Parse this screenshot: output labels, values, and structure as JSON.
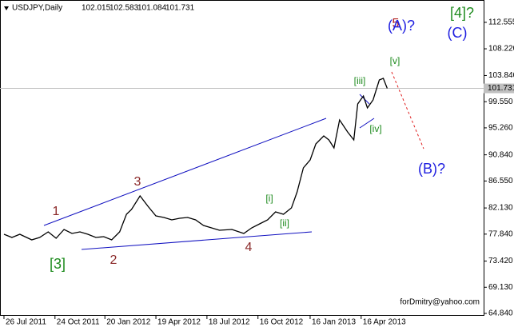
{
  "chart_data": {
    "type": "line",
    "symbol": "USDJPY,Daily",
    "ohlc": [
      102.015,
      102.583,
      101.084,
      101.731
    ],
    "last_price": 101.731,
    "watermark": "forDmitry@yahoo.com",
    "color": "#000000",
    "x": [
      "2011-07-26",
      "2011-08-09",
      "2011-08-23",
      "2011-09-13",
      "2011-09-27",
      "2011-10-12",
      "2011-10-26",
      "2011-11-09",
      "2011-11-23",
      "2011-12-07",
      "2011-12-21",
      "2012-01-04",
      "2012-01-18",
      "2012-02-01",
      "2012-02-15",
      "2012-02-27",
      "2012-03-07",
      "2012-03-22",
      "2012-04-05",
      "2012-04-19",
      "2012-05-03",
      "2012-05-17",
      "2012-05-31",
      "2012-06-14",
      "2012-06-28",
      "2012-07-12",
      "2012-07-26",
      "2012-08-09",
      "2012-08-31",
      "2012-09-21",
      "2012-10-05",
      "2012-10-19",
      "2012-11-02",
      "2012-11-16",
      "2012-11-30",
      "2012-12-14",
      "2012-12-24",
      "2013-01-04",
      "2013-01-16",
      "2013-01-26",
      "2013-02-09",
      "2013-02-18",
      "2013-02-27",
      "2013-03-09",
      "2013-03-23",
      "2013-04-03",
      "2013-04-10",
      "2013-04-20",
      "2013-04-27",
      "2013-05-07",
      "2013-05-18",
      "2013-05-25",
      "2013-06-01"
    ],
    "values": [
      77.82,
      77.3,
      77.82,
      76.9,
      77.3,
      78.21,
      77.16,
      78.6,
      77.95,
      78.21,
      77.82,
      77.3,
      77.43,
      76.9,
      78.21,
      81.09,
      81.88,
      84.11,
      82.41,
      80.83,
      80.57,
      80.18,
      80.44,
      80.57,
      80.18,
      79.26,
      78.87,
      78.47,
      78.6,
      77.95,
      78.87,
      79.52,
      80.18,
      81.49,
      81.09,
      82.14,
      84.77,
      88.7,
      90.01,
      92.63,
      93.94,
      93.29,
      91.97,
      96.56,
      94.6,
      93.29,
      99.18,
      100.49,
      98.53,
      99.84,
      103.11,
      103.38,
      101.731
    ],
    "xlim": [
      "2011-07-19",
      "2013-11-18"
    ],
    "xticks": [
      {
        "value": "2011-07-26",
        "label": "26 Jul 2011"
      },
      {
        "value": "2011-10-24",
        "label": "24 Oct 2011"
      },
      {
        "value": "2012-01-20",
        "label": "20 Jan 2012"
      },
      {
        "value": "2012-04-19",
        "label": "19 Apr 2012"
      },
      {
        "value": "2012-07-18",
        "label": "18 Jul 2012"
      },
      {
        "value": "2012-10-16",
        "label": "16 Oct 2012"
      },
      {
        "value": "2013-01-16",
        "label": "16 Jan 2013"
      },
      {
        "value": "2013-04-16",
        "label": "16 Apr 2013"
      }
    ],
    "ylim": [
      64.45,
      116.22
    ],
    "yticks": [
      {
        "value": 112.555,
        "label": "112.555"
      },
      {
        "value": 108.22,
        "label": "108.220"
      },
      {
        "value": 103.84,
        "label": "103.840"
      },
      {
        "value": 99.55,
        "label": "99.550"
      },
      {
        "value": 95.26,
        "label": "95.260"
      },
      {
        "value": 90.84,
        "label": "90.840"
      },
      {
        "value": 86.55,
        "label": "86.550"
      },
      {
        "value": 82.13,
        "label": "82.130"
      },
      {
        "value": 77.84,
        "label": "77.840"
      },
      {
        "value": 73.42,
        "label": "73.420"
      },
      {
        "value": 69.13,
        "label": "69.130"
      },
      {
        "value": 64.84,
        "label": "64.840"
      }
    ],
    "annotations": [
      {
        "text": "1",
        "color": "#8b2a2a"
      },
      {
        "text": "2",
        "color": "#8b2a2a"
      },
      {
        "text": "3",
        "color": "#8b2a2a"
      },
      {
        "text": "4",
        "color": "#8b2a2a"
      },
      {
        "text": "5",
        "color": "#b22222"
      },
      {
        "text": "[3]",
        "color": "#1e8b1e"
      },
      {
        "text": "[i]",
        "color": "#1e8b1e"
      },
      {
        "text": "[ii]",
        "color": "#1e8b1e"
      },
      {
        "text": "[iii]",
        "color": "#1e8b1e"
      },
      {
        "text": "[iv]",
        "color": "#1e8b1e"
      },
      {
        "text": "[v]",
        "color": "#1e8b1e"
      },
      {
        "text": "[4]?",
        "color": "#1e8b1e"
      },
      {
        "text": "(A)?",
        "color": "#2020e0"
      },
      {
        "text": "(B)?",
        "color": "#2020e0"
      },
      {
        "text": "(C)",
        "color": "#2020e0"
      }
    ]
  }
}
